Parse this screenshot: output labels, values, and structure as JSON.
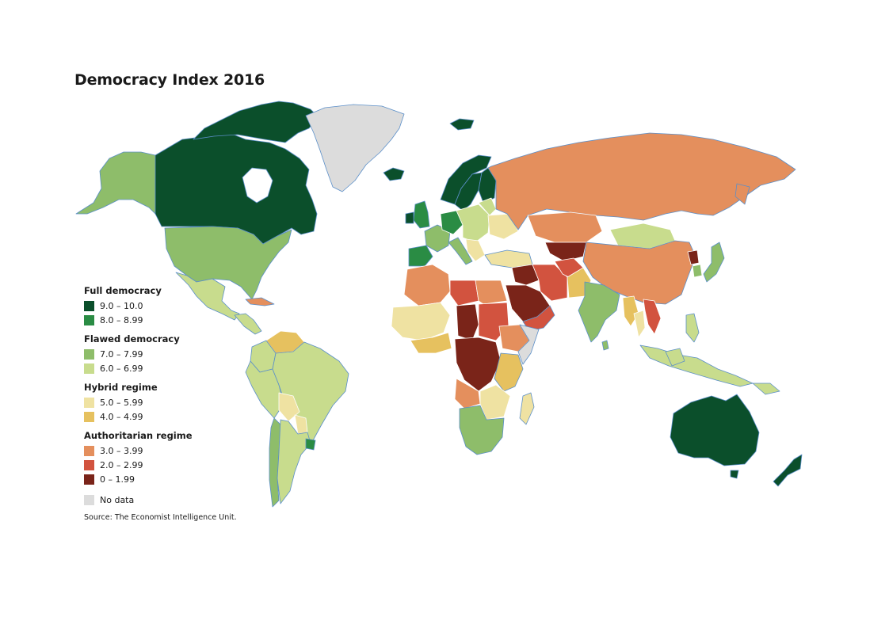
{
  "title": "Democracy Index 2016",
  "source": "Source: The Economist Intelligence Unit.",
  "colors": {
    "ocean_outline": "#5b8fc9",
    "border": "#ffffff",
    "c_full_hi": "#0b4f2b",
    "c_full_lo": "#2a8c44",
    "c_flawed_hi": "#8ebd6a",
    "c_flawed_lo": "#c8dc8d",
    "c_hybrid_hi": "#efe2a2",
    "c_hybrid_lo": "#e6c15f",
    "c_auth_hi": "#e48f5d",
    "c_auth_mid": "#d2533f",
    "c_auth_lo": "#7a2419",
    "c_nodata": "#dcdcdc"
  },
  "legend": {
    "groups": [
      {
        "title": "Full democracy",
        "items": [
          {
            "label": "9.0 – 10.0",
            "color": "#0b4f2b"
          },
          {
            "label": "8.0 – 8.99",
            "color": "#2a8c44"
          }
        ]
      },
      {
        "title": "Flawed democracy",
        "items": [
          {
            "label": "7.0 – 7.99",
            "color": "#8ebd6a"
          },
          {
            "label": "6.0 – 6.99",
            "color": "#c8dc8d"
          }
        ]
      },
      {
        "title": "Hybrid regime",
        "items": [
          {
            "label": "5.0 – 5.99",
            "color": "#efe2a2"
          },
          {
            "label": "4.0 – 4.99",
            "color": "#e6c15f"
          }
        ]
      },
      {
        "title": "Authoritarian regime",
        "items": [
          {
            "label": "3.0 – 3.99",
            "color": "#e48f5d"
          },
          {
            "label": "2.0 – 2.99",
            "color": "#d2533f"
          },
          {
            "label": "0 – 1.99",
            "color": "#7a2419"
          }
        ]
      }
    ],
    "nodata": {
      "label": "No data",
      "color": "#dcdcdc"
    }
  }
}
